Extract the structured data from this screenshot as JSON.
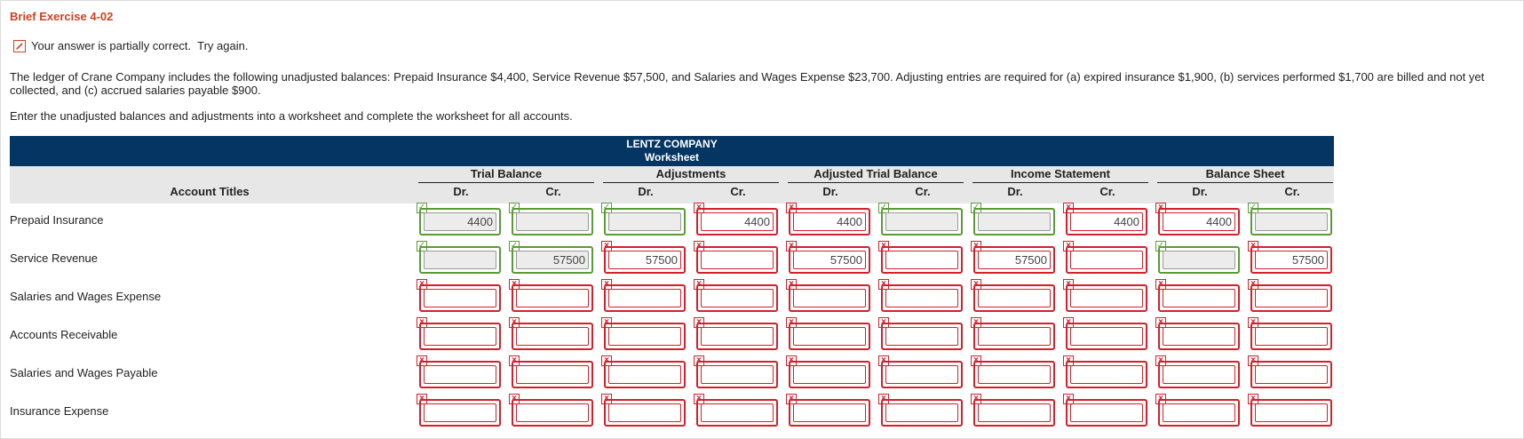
{
  "exercise_title": "Brief Exercise 4-02",
  "status": {
    "icon": "pencil-icon",
    "message": "Your answer is partially correct.  Try again."
  },
  "problem_text": "The ledger of Crane Company includes the following unadjusted balances: Prepaid Insurance $4,400, Service Revenue $57,500, and Salaries and Wages Expense $23,700. Adjusting entries are required for (a) expired insurance $1,900, (b) services performed $1,700 are billed and not yet collected, and (c) accrued salaries payable $900.",
  "instruction": "Enter the unadjusted balances and adjustments into a worksheet and complete the worksheet for all accounts.",
  "worksheet": {
    "company": "LENTZ COMPANY",
    "name": "Worksheet",
    "account_titles_label": "Account Titles",
    "groups": [
      "Trial Balance",
      "Adjustments",
      "Adjusted Trial Balance",
      "Income Statement",
      "Balance Sheet"
    ],
    "sub_headers": [
      "Dr.",
      "Cr."
    ],
    "rows": [
      {
        "account": "Prepaid Insurance",
        "cells": [
          {
            "value": "4400",
            "status": "correct",
            "readonly": true
          },
          {
            "value": "",
            "status": "correct",
            "readonly": true
          },
          {
            "value": "",
            "status": "correct",
            "readonly": true
          },
          {
            "value": "4400",
            "status": "incorrect",
            "readonly": false
          },
          {
            "value": "4400",
            "status": "incorrect",
            "readonly": false
          },
          {
            "value": "",
            "status": "correct",
            "readonly": true
          },
          {
            "value": "",
            "status": "correct",
            "readonly": true
          },
          {
            "value": "4400",
            "status": "incorrect",
            "readonly": false
          },
          {
            "value": "4400",
            "status": "incorrect",
            "readonly": false
          },
          {
            "value": "",
            "status": "correct",
            "readonly": true
          }
        ]
      },
      {
        "account": "Service Revenue",
        "cells": [
          {
            "value": "",
            "status": "correct",
            "readonly": true
          },
          {
            "value": "57500",
            "status": "correct",
            "readonly": true
          },
          {
            "value": "57500",
            "status": "incorrect",
            "readonly": false
          },
          {
            "value": "",
            "status": "incorrect",
            "readonly": false
          },
          {
            "value": "57500",
            "status": "incorrect",
            "readonly": false
          },
          {
            "value": "",
            "status": "incorrect",
            "readonly": false
          },
          {
            "value": "57500",
            "status": "incorrect",
            "readonly": false
          },
          {
            "value": "",
            "status": "incorrect",
            "readonly": false
          },
          {
            "value": "",
            "status": "correct",
            "readonly": true
          },
          {
            "value": "57500",
            "status": "incorrect",
            "readonly": false
          }
        ]
      },
      {
        "account": "Salaries and Wages Expense",
        "cells": [
          {
            "value": "",
            "status": "incorrect",
            "readonly": false
          },
          {
            "value": "",
            "status": "incorrect",
            "readonly": false
          },
          {
            "value": "",
            "status": "incorrect",
            "readonly": false
          },
          {
            "value": "",
            "status": "incorrect",
            "readonly": false
          },
          {
            "value": "",
            "status": "incorrect",
            "readonly": false
          },
          {
            "value": "",
            "status": "incorrect",
            "readonly": false
          },
          {
            "value": "",
            "status": "incorrect",
            "readonly": false
          },
          {
            "value": "",
            "status": "incorrect",
            "readonly": false
          },
          {
            "value": "",
            "status": "incorrect",
            "readonly": false
          },
          {
            "value": "",
            "status": "incorrect",
            "readonly": false
          }
        ]
      },
      {
        "account": "Accounts Receivable",
        "cells": [
          {
            "value": "",
            "status": "incorrect",
            "readonly": false
          },
          {
            "value": "",
            "status": "incorrect",
            "readonly": false
          },
          {
            "value": "",
            "status": "incorrect",
            "readonly": false
          },
          {
            "value": "",
            "status": "incorrect",
            "readonly": false
          },
          {
            "value": "",
            "status": "incorrect",
            "readonly": false
          },
          {
            "value": "",
            "status": "incorrect",
            "readonly": false
          },
          {
            "value": "",
            "status": "incorrect",
            "readonly": false
          },
          {
            "value": "",
            "status": "incorrect",
            "readonly": false
          },
          {
            "value": "",
            "status": "incorrect",
            "readonly": false
          },
          {
            "value": "",
            "status": "incorrect",
            "readonly": false
          }
        ]
      },
      {
        "account": "Salaries and Wages Payable",
        "cells": [
          {
            "value": "",
            "status": "incorrect",
            "readonly": false
          },
          {
            "value": "",
            "status": "incorrect",
            "readonly": false
          },
          {
            "value": "",
            "status": "incorrect",
            "readonly": false
          },
          {
            "value": "",
            "status": "incorrect",
            "readonly": false
          },
          {
            "value": "",
            "status": "incorrect",
            "readonly": false
          },
          {
            "value": "",
            "status": "incorrect",
            "readonly": false
          },
          {
            "value": "",
            "status": "incorrect",
            "readonly": false
          },
          {
            "value": "",
            "status": "incorrect",
            "readonly": false
          },
          {
            "value": "",
            "status": "incorrect",
            "readonly": false
          },
          {
            "value": "",
            "status": "incorrect",
            "readonly": false
          }
        ]
      },
      {
        "account": "Insurance Expense",
        "cells": [
          {
            "value": "",
            "status": "incorrect",
            "readonly": false
          },
          {
            "value": "",
            "status": "incorrect",
            "readonly": false
          },
          {
            "value": "",
            "status": "incorrect",
            "readonly": false
          },
          {
            "value": "",
            "status": "incorrect",
            "readonly": false
          },
          {
            "value": "",
            "status": "incorrect",
            "readonly": false
          },
          {
            "value": "",
            "status": "incorrect",
            "readonly": false
          },
          {
            "value": "",
            "status": "incorrect",
            "readonly": false
          },
          {
            "value": "",
            "status": "incorrect",
            "readonly": false
          },
          {
            "value": "",
            "status": "incorrect",
            "readonly": false
          },
          {
            "value": "",
            "status": "incorrect",
            "readonly": false
          }
        ]
      }
    ]
  },
  "colors": {
    "title": "#d2401e",
    "header_bg": "#053663",
    "subheader_bg": "#e7e7e7",
    "correct": "#5a9b36",
    "incorrect": "#d3202a"
  }
}
